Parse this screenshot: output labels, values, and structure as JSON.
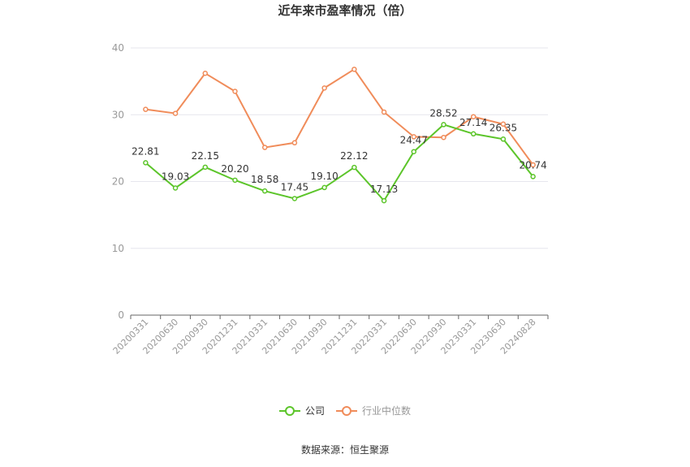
{
  "title": "近年来市盈率情况（倍）",
  "source": "数据来源：恒生聚源",
  "colors": {
    "company": "#5cc52a",
    "industry": "#f08c5a",
    "grid": "#e6e6ee",
    "axis": "#666666",
    "tick": "#999999"
  },
  "chart_data": {
    "type": "line",
    "title": "近年来市盈率情况（倍）",
    "categories": [
      "20200331",
      "20200630",
      "20200930",
      "20201231",
      "20210331",
      "20210630",
      "20210930",
      "20211231",
      "20220331",
      "20220630",
      "20220930",
      "20230331",
      "20230630",
      "20240828"
    ],
    "yticks": [
      "0",
      "10",
      "20",
      "30",
      "40"
    ],
    "ylim": [
      0,
      40
    ],
    "grid": true,
    "legend_position": "bottom-center",
    "series": [
      {
        "name": "公司",
        "values": [
          22.81,
          19.03,
          22.15,
          20.2,
          18.58,
          17.45,
          19.1,
          22.12,
          17.13,
          24.47,
          28.52,
          27.14,
          26.35,
          20.74
        ],
        "labels": [
          "22.81",
          "19.03",
          "22.15",
          "20.20",
          "18.58",
          "17.45",
          "19.10",
          "22.12",
          "17.13",
          "24.47",
          "28.52",
          "27.14",
          "26.35",
          "20.74"
        ]
      },
      {
        "name": "行业中位数",
        "values": [
          30.8,
          30.2,
          36.2,
          33.5,
          25.1,
          25.8,
          34.0,
          36.8,
          30.4,
          26.7,
          26.6,
          29.7,
          28.6,
          22.5
        ]
      }
    ]
  }
}
